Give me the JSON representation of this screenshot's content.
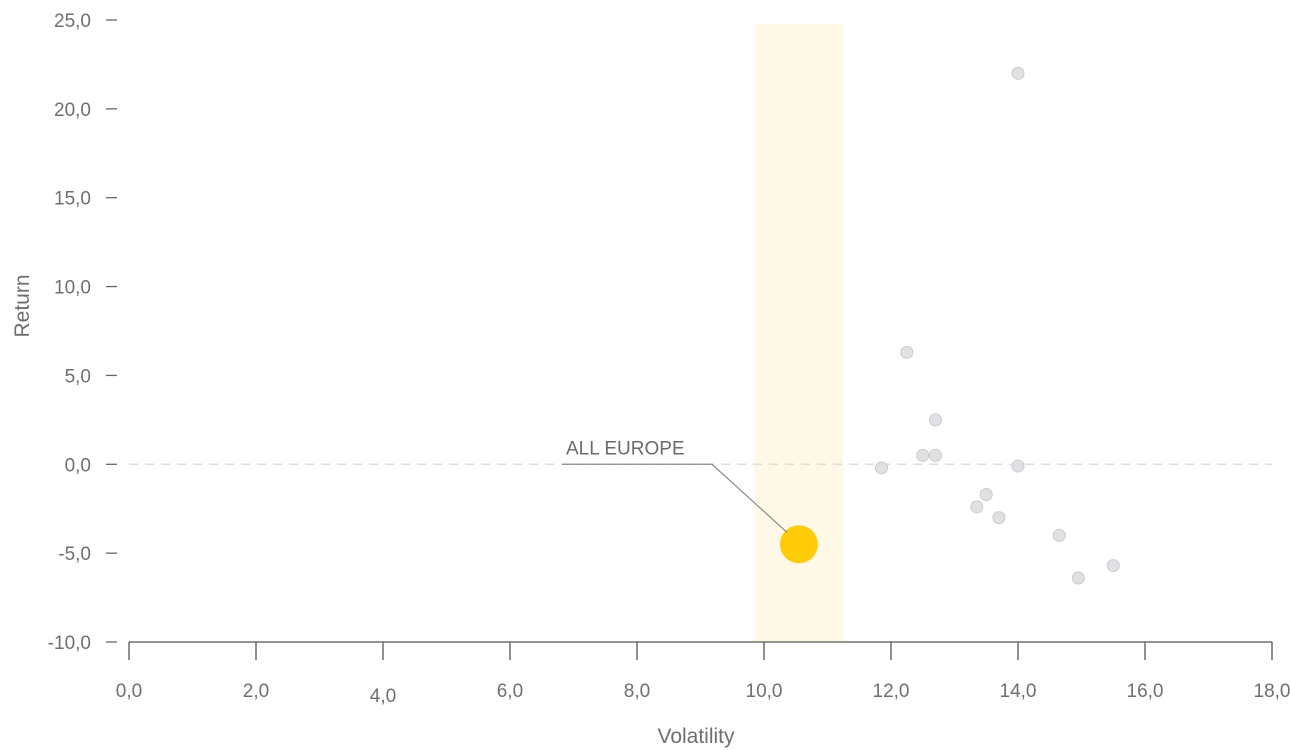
{
  "chart_data": {
    "type": "scatter",
    "xlabel": "Volatility",
    "ylabel": "Return",
    "xlim": [
      0,
      18
    ],
    "ylim": [
      -10,
      25
    ],
    "x_ticks": [
      "0,0",
      "2,0",
      "4,0",
      "6,0",
      "8,0",
      "10,0",
      "12,0",
      "14,0",
      "16,0",
      "18,0"
    ],
    "x_tick_values": [
      0,
      2,
      4,
      6,
      8,
      10,
      12,
      14,
      16,
      18
    ],
    "y_ticks": [
      "25,0",
      "20,0",
      "15,0",
      "10,0",
      "5,0",
      "0,0",
      "-5,0",
      "-10,0"
    ],
    "y_tick_values": [
      25,
      20,
      15,
      10,
      5,
      0,
      -5,
      -10
    ],
    "highlight_band": {
      "x_from": 9.85,
      "x_to": 11.25,
      "color": "#fef8e6"
    },
    "zero_line": {
      "y": 0,
      "style": "dashed",
      "color": "#dddddd"
    },
    "highlight_point": {
      "label": "ALL EUROPE",
      "x": 10.55,
      "y": -4.5,
      "color": "#ffcc0a"
    },
    "points": [
      {
        "x": 11.85,
        "y": -0.2
      },
      {
        "x": 12.25,
        "y": 6.3
      },
      {
        "x": 12.5,
        "y": 0.5
      },
      {
        "x": 12.7,
        "y": 0.5
      },
      {
        "x": 12.7,
        "y": 2.5
      },
      {
        "x": 13.35,
        "y": -2.4
      },
      {
        "x": 13.5,
        "y": -1.7
      },
      {
        "x": 13.7,
        "y": -3.0
      },
      {
        "x": 14.0,
        "y": -0.1
      },
      {
        "x": 14.0,
        "y": 22.0
      },
      {
        "x": 14.65,
        "y": -4.0
      },
      {
        "x": 14.95,
        "y": -6.4
      },
      {
        "x": 15.5,
        "y": -5.7
      }
    ],
    "point_color": "#dfe1e3",
    "point_stroke": "#c8cbcf",
    "grid": false,
    "legend": "none"
  }
}
